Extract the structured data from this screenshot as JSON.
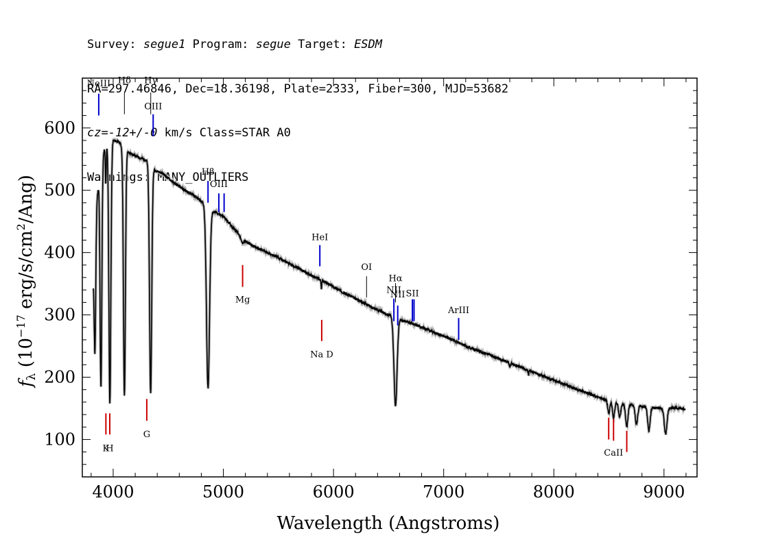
{
  "header": {
    "survey_label": "Survey:",
    "survey": "segue1",
    "program_label": "Program:",
    "program": "segue",
    "target_label": "Target:",
    "target": "ESDM",
    "line2": "RA=297.46846, Dec=18.36198, Plate=2333, Fiber=300, MJD=53682",
    "cz_label": "cz=",
    "cz_value": "-12+/-0",
    "cz_rest": " km/s Class=STAR A0",
    "line4": "Warnings: MANY_OUTLIERS"
  },
  "chart_data": {
    "type": "line",
    "xlabel": "Wavelength (Angstroms)",
    "ylabel_parts": [
      "f",
      "λ",
      " (10",
      "−17",
      " erg/s/cm",
      "2",
      "/Ang)"
    ],
    "xlim": [
      3720,
      9300
    ],
    "ylim": [
      40,
      680
    ],
    "xticks": [
      4000,
      5000,
      6000,
      7000,
      8000,
      9000
    ],
    "yticks": [
      100,
      200,
      300,
      400,
      500,
      600
    ],
    "grid": false,
    "series": [
      {
        "color": "#000000",
        "continuum": [
          [
            3820,
            360
          ],
          [
            3850,
            480
          ],
          [
            3880,
            530
          ],
          [
            3920,
            565
          ],
          [
            3960,
            578
          ],
          [
            4000,
            580
          ],
          [
            4050,
            578
          ],
          [
            4100,
            566
          ],
          [
            4150,
            560
          ],
          [
            4200,
            555
          ],
          [
            4300,
            548
          ],
          [
            4380,
            532
          ],
          [
            4450,
            527
          ],
          [
            4550,
            512
          ],
          [
            4650,
            500
          ],
          [
            4750,
            490
          ],
          [
            4800,
            482
          ],
          [
            4900,
            467
          ],
          [
            5000,
            458
          ],
          [
            5100,
            438
          ],
          [
            5200,
            418
          ],
          [
            5300,
            408
          ],
          [
            5400,
            400
          ],
          [
            5500,
            392
          ],
          [
            5600,
            382
          ],
          [
            5700,
            373
          ],
          [
            5800,
            363
          ],
          [
            5900,
            355
          ],
          [
            6000,
            345
          ],
          [
            6100,
            335
          ],
          [
            6200,
            326
          ],
          [
            6300,
            317
          ],
          [
            6400,
            308
          ],
          [
            6500,
            300
          ],
          [
            6600,
            292
          ],
          [
            6700,
            287
          ],
          [
            6800,
            280
          ],
          [
            6900,
            273
          ],
          [
            7000,
            266
          ],
          [
            7100,
            258
          ],
          [
            7200,
            250
          ],
          [
            7300,
            243
          ],
          [
            7400,
            237
          ],
          [
            7500,
            230
          ],
          [
            7600,
            223
          ],
          [
            7700,
            216
          ],
          [
            7800,
            209
          ],
          [
            7900,
            202
          ],
          [
            8000,
            195
          ],
          [
            8100,
            188
          ],
          [
            8200,
            181
          ],
          [
            8300,
            175
          ],
          [
            8400,
            168
          ],
          [
            8500,
            162
          ],
          [
            8600,
            158
          ],
          [
            8700,
            156
          ],
          [
            8800,
            153
          ],
          [
            8900,
            151
          ],
          [
            9000,
            150
          ],
          [
            9100,
            151
          ],
          [
            9190,
            149
          ]
        ],
        "absorption_lines": [
          {
            "center": 3835,
            "depth": 180,
            "width": 7
          },
          {
            "center": 3889,
            "depth": 355,
            "width": 8
          },
          {
            "center": 3933,
            "depth": 60,
            "width": 4
          },
          {
            "center": 3970,
            "depth": 420,
            "width": 9
          },
          {
            "center": 4102,
            "depth": 395,
            "width": 9
          },
          {
            "center": 4340,
            "depth": 365,
            "width": 10
          },
          {
            "center": 4861,
            "depth": 290,
            "width": 14
          },
          {
            "center": 5170,
            "depth": 8,
            "width": 12
          },
          {
            "center": 5890,
            "depth": 14,
            "width": 3
          },
          {
            "center": 6563,
            "depth": 140,
            "width": 14
          },
          {
            "center": 7600,
            "depth": 6,
            "width": 5
          },
          {
            "center": 7770,
            "depth": 8,
            "width": 4
          },
          {
            "center": 8498,
            "depth": 20,
            "width": 9
          },
          {
            "center": 8542,
            "depth": 25,
            "width": 10
          },
          {
            "center": 8598,
            "depth": 22,
            "width": 10
          },
          {
            "center": 8662,
            "depth": 35,
            "width": 11
          },
          {
            "center": 8750,
            "depth": 30,
            "width": 11
          },
          {
            "center": 8863,
            "depth": 38,
            "width": 11
          },
          {
            "center": 9015,
            "depth": 42,
            "width": 12
          }
        ]
      }
    ],
    "annotations": [
      {
        "label": "NeIII",
        "x": 3869,
        "y0": 620,
        "y1": 655,
        "label_y": 667,
        "color": "#0000cc"
      },
      {
        "label": "Hδ",
        "x": 4102,
        "y0": 622,
        "y1": 657,
        "label_y": 672,
        "color": "#000000"
      },
      {
        "label": "Hγ",
        "x": 4341,
        "y0": 622,
        "y1": 657,
        "label_y": 672,
        "color": "#000000"
      },
      {
        "label": "OIII",
        "x": 4363,
        "y0": 587,
        "y1": 622,
        "label_y": 630,
        "color": "#0000cc"
      },
      {
        "label": "Hβ",
        "x": 4861,
        "y0": 480,
        "y1": 515,
        "label_y": 525,
        "color": "#0000cc"
      },
      {
        "label": "OIII",
        "x": 4959,
        "y0": 465,
        "y1": 495,
        "label_y": 505,
        "color": "#0000cc"
      },
      {
        "label": "",
        "x": 5007,
        "y0": 465,
        "y1": 495,
        "color": "#0000cc"
      },
      {
        "label": "HeI",
        "x": 5876,
        "y0": 378,
        "y1": 412,
        "label_y": 420,
        "color": "#0000cc"
      },
      {
        "label": "OI",
        "x": 6300,
        "y0": 328,
        "y1": 362,
        "label_y": 372,
        "color": "#000000"
      },
      {
        "label": "NII",
        "x": 6548,
        "y0": 290,
        "y1": 326,
        "label_y": 335,
        "color": "#0000cc"
      },
      {
        "label": "Hα",
        "x": 6563,
        "y0": 320,
        "y1": 351,
        "label_y": 354,
        "color": "#000000"
      },
      {
        "label": "NII",
        "x": 6583,
        "y0": 283,
        "y1": 315,
        "label_y": 328,
        "color": "#0000cc"
      },
      {
        "label": "SII",
        "x": 6716,
        "y0": 290,
        "y1": 325,
        "label_y": 330,
        "color": "#0000cc"
      },
      {
        "label": "",
        "x": 6731,
        "y0": 290,
        "y1": 325,
        "color": "#0000cc"
      },
      {
        "label": "ArIII",
        "x": 7136,
        "y0": 260,
        "y1": 295,
        "label_y": 303,
        "color": "#0000cc"
      },
      {
        "label": "Mg",
        "x": 5175,
        "y0": 345,
        "y1": 380,
        "label_y": 320,
        "color": "#cc0000"
      },
      {
        "label": "Na  D",
        "x": 5893,
        "y0": 258,
        "y1": 292,
        "label_y": 232,
        "color": "#cc0000"
      },
      {
        "label": "K",
        "x": 3934,
        "y0": 108,
        "y1": 142,
        "label_y": 81,
        "color": "#cc0000"
      },
      {
        "label": "H",
        "x": 3969,
        "y0": 108,
        "y1": 142,
        "label_y": 81,
        "color": "#cc0000"
      },
      {
        "label": "G",
        "x": 4305,
        "y0": 130,
        "y1": 165,
        "label_y": 104,
        "color": "#cc0000"
      },
      {
        "label": "",
        "x": 8498,
        "y0": 100,
        "y1": 135,
        "color": "#cc0000"
      },
      {
        "label": "CaII",
        "x": 8542,
        "y0": 98,
        "y1": 133,
        "label_y": 74,
        "color": "#cc0000"
      },
      {
        "label": "",
        "x": 8662,
        "y0": 80,
        "y1": 114,
        "color": "#cc0000"
      }
    ]
  }
}
